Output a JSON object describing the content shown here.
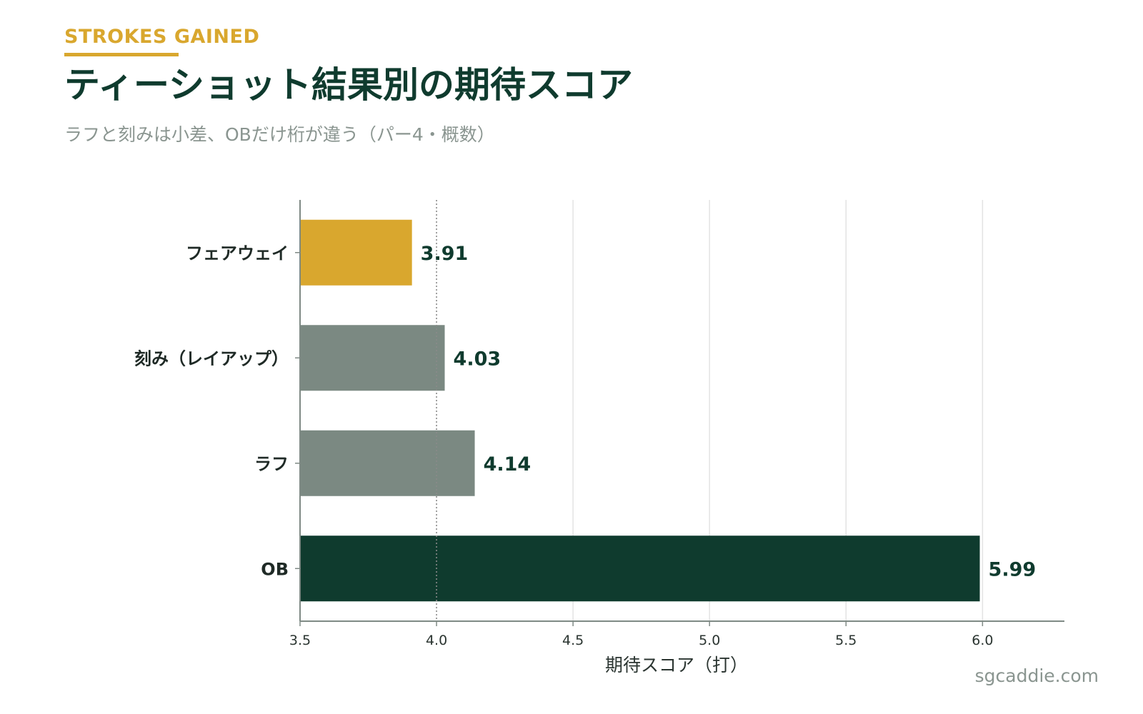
{
  "header": {
    "kicker": "STROKES GAINED",
    "title": "ティーショット結果別の期待スコア",
    "subtitle": "ラフと刻みは小差、OBだけ桁が違う（パー4・概数）"
  },
  "footer": {
    "credit": "sgcaddie.com"
  },
  "colors": {
    "accent": "#d9a72e",
    "neutral": "#7b8982",
    "dark": "#0f3b2e",
    "grid": "#e3e3e3",
    "axis": "#7f8a85"
  },
  "chart_data": {
    "type": "bar",
    "orientation": "horizontal",
    "categories": [
      "フェアウェイ",
      "刻み（レイアップ）",
      "ラフ",
      "OB"
    ],
    "values": [
      3.91,
      4.03,
      4.14,
      5.99
    ],
    "value_labels": [
      "3.91",
      "4.03",
      "4.14",
      "5.99"
    ],
    "bar_colors": [
      "#d9a72e",
      "#7b8982",
      "#7b8982",
      "#0f3b2e"
    ],
    "xlabel": "期待スコア（打）",
    "xlim": [
      3.5,
      6.3
    ],
    "xticks": [
      3.5,
      4.0,
      4.5,
      5.0,
      5.5,
      6.0
    ],
    "xtick_labels": [
      "3.5",
      "4.0",
      "4.5",
      "5.0",
      "5.5",
      "6.0"
    ],
    "reference_line": 4.0,
    "grid": "vertical"
  }
}
